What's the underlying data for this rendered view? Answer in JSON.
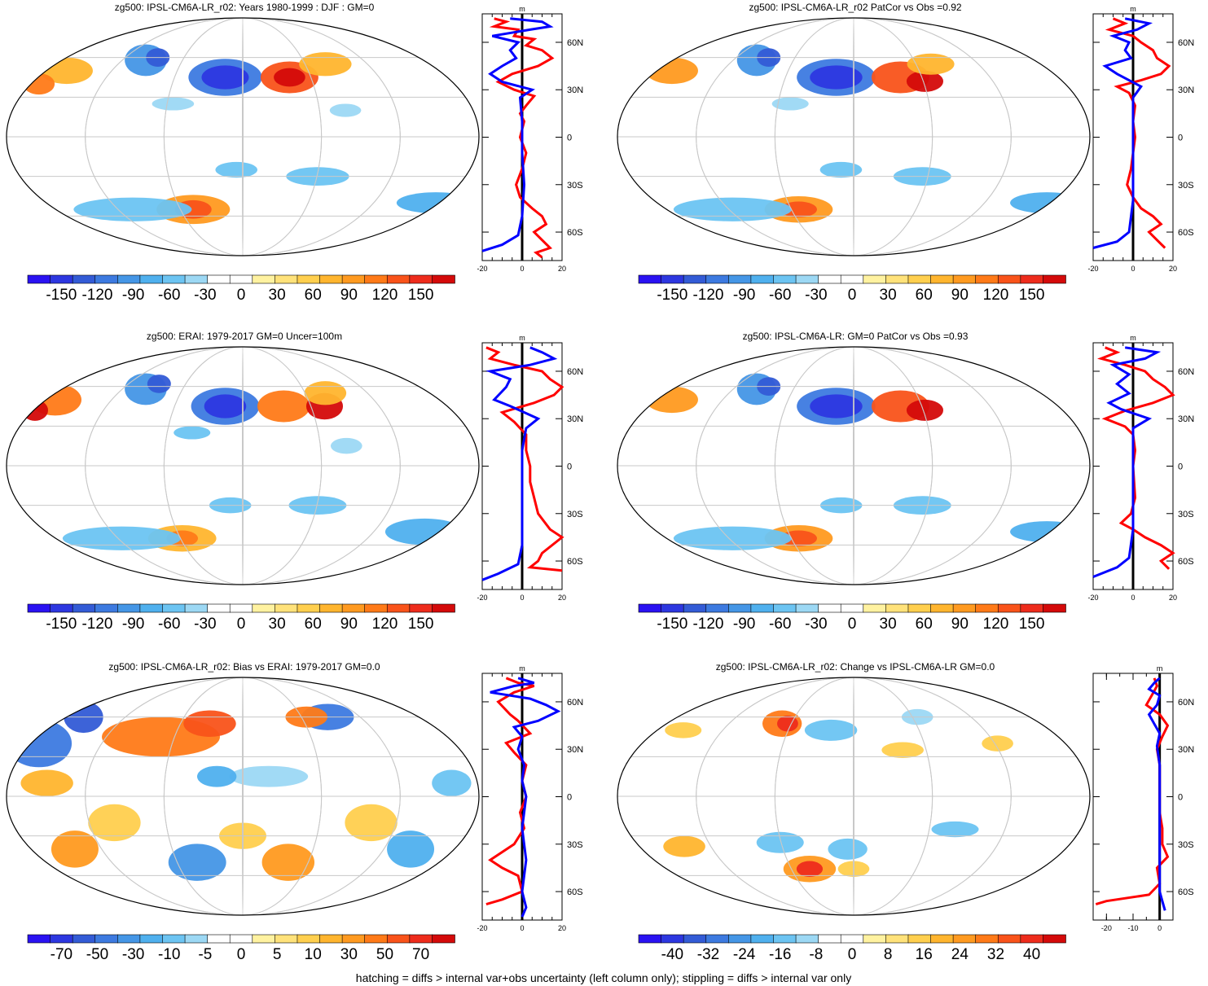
{
  "colors": {
    "scale": [
      "#2a12f2",
      "#2d37e0",
      "#335bd6",
      "#3d7ae0",
      "#4596e6",
      "#4fb0ee",
      "#6cc4f2",
      "#9cd8f4",
      "#ffffff",
      "#ffffff",
      "#fff2a0",
      "#ffe27a",
      "#ffcf4e",
      "#ffb52e",
      "#ff9a20",
      "#ff7a18",
      "#f9531a",
      "#ee2c1c",
      "#d40a0a"
    ],
    "red_line": "#ff0000",
    "blue_line": "#0000ff",
    "grid": "#c8c8c8"
  },
  "footer": "hatching = diffs > internal var+obs uncertainty (left column only); stippling = diffs > internal var only",
  "chart_data": [
    {
      "type": "heatmap",
      "title": "zg500: IPSL-CM6A-LR_r02: Years 1980-1999 : DJF : GM=0",
      "colorbar": {
        "labels": [
          "-150",
          "-120",
          "-90",
          "-60",
          "-30",
          "0",
          "30",
          "60",
          "90",
          "120",
          "150"
        ]
      },
      "lat_labels": [
        "60N",
        "30N",
        "0",
        "30S",
        "60S"
      ],
      "profile": {
        "xlabel": "m",
        "xlim": [
          -20,
          20
        ],
        "x_ticks": [
          "-20",
          "0",
          "20"
        ],
        "red": [
          [
            -14,
            75
          ],
          [
            -8,
            73
          ],
          [
            -14,
            70
          ],
          [
            -2,
            68
          ],
          [
            -4,
            64
          ],
          [
            6,
            62
          ],
          [
            2,
            58
          ],
          [
            10,
            55
          ],
          [
            15,
            50
          ],
          [
            8,
            45
          ],
          [
            -5,
            40
          ],
          [
            -12,
            35
          ],
          [
            -4,
            30
          ],
          [
            6,
            26
          ],
          [
            2,
            20
          ],
          [
            -1,
            15
          ],
          [
            1,
            10
          ],
          [
            -1,
            0
          ],
          [
            2,
            -10
          ],
          [
            0,
            -20
          ],
          [
            -3,
            -30
          ],
          [
            -1,
            -38
          ],
          [
            5,
            -45
          ],
          [
            10,
            -50
          ],
          [
            12,
            -55
          ],
          [
            6,
            -60
          ],
          [
            10,
            -65
          ],
          [
            14,
            -70
          ],
          [
            7,
            -73
          ],
          [
            10,
            -76
          ]
        ],
        "blue": [
          [
            -6,
            75
          ],
          [
            10,
            73
          ],
          [
            14,
            70
          ],
          [
            4,
            68
          ],
          [
            -15,
            64
          ],
          [
            -2,
            60
          ],
          [
            -6,
            55
          ],
          [
            -3,
            50
          ],
          [
            -10,
            45
          ],
          [
            -16,
            40
          ],
          [
            -10,
            35
          ],
          [
            5,
            30
          ],
          [
            -1,
            25
          ],
          [
            0,
            10
          ],
          [
            0,
            -10
          ],
          [
            1,
            -30
          ],
          [
            0,
            -50
          ],
          [
            -2,
            -62
          ],
          [
            -10,
            -68
          ],
          [
            -20,
            -72
          ]
        ]
      }
    },
    {
      "type": "heatmap",
      "title": "zg500: IPSL-CM6A-LR_r02 PatCor vs Obs =0.92",
      "colorbar": {
        "labels": [
          "-150",
          "-120",
          "-90",
          "-60",
          "-30",
          "0",
          "30",
          "60",
          "90",
          "120",
          "150"
        ]
      },
      "lat_labels": [
        "60N",
        "30N",
        "0",
        "30S",
        "60S"
      ],
      "profile": {
        "xlabel": "m",
        "xlim": [
          -20,
          20
        ],
        "x_ticks": [
          "-20",
          "0",
          "20"
        ],
        "red": [
          [
            -10,
            75
          ],
          [
            -4,
            72
          ],
          [
            -12,
            68
          ],
          [
            0,
            64
          ],
          [
            4,
            60
          ],
          [
            10,
            55
          ],
          [
            12,
            50
          ],
          [
            18,
            45
          ],
          [
            14,
            40
          ],
          [
            4,
            36
          ],
          [
            -8,
            32
          ],
          [
            -2,
            28
          ],
          [
            1,
            20
          ],
          [
            0,
            10
          ],
          [
            1,
            0
          ],
          [
            -1,
            -20
          ],
          [
            -3,
            -30
          ],
          [
            0,
            -38
          ],
          [
            4,
            -45
          ],
          [
            10,
            -50
          ],
          [
            14,
            -55
          ],
          [
            8,
            -60
          ],
          [
            12,
            -65
          ],
          [
            16,
            -70
          ]
        ],
        "blue": [
          [
            -4,
            75
          ],
          [
            8,
            72
          ],
          [
            2,
            68
          ],
          [
            -10,
            64
          ],
          [
            -2,
            60
          ],
          [
            -4,
            55
          ],
          [
            -1,
            50
          ],
          [
            -14,
            45
          ],
          [
            -8,
            40
          ],
          [
            4,
            32
          ],
          [
            0,
            25
          ],
          [
            0,
            0
          ],
          [
            0,
            -40
          ],
          [
            -2,
            -60
          ],
          [
            -8,
            -66
          ],
          [
            -20,
            -70
          ]
        ]
      }
    },
    {
      "type": "heatmap",
      "title": "zg500: ERAI: 1979-2017 GM=0 Uncer=100m",
      "colorbar": {
        "labels": [
          "-150",
          "-120",
          "-90",
          "-60",
          "-30",
          "0",
          "30",
          "60",
          "90",
          "120",
          "150"
        ]
      },
      "lat_labels": [
        "60N",
        "30N",
        "0",
        "30S",
        "60S"
      ],
      "profile": {
        "xlabel": "m",
        "xlim": [
          -20,
          20
        ],
        "x_ticks": [
          "-20",
          "0",
          "20"
        ],
        "red": [
          [
            -18,
            75
          ],
          [
            -12,
            72
          ],
          [
            -16,
            68
          ],
          [
            -4,
            64
          ],
          [
            10,
            60
          ],
          [
            14,
            55
          ],
          [
            20,
            50
          ],
          [
            16,
            45
          ],
          [
            6,
            40
          ],
          [
            -10,
            34
          ],
          [
            -4,
            28
          ],
          [
            2,
            20
          ],
          [
            2,
            10
          ],
          [
            4,
            0
          ],
          [
            4,
            -10
          ],
          [
            6,
            -20
          ],
          [
            8,
            -30
          ],
          [
            14,
            -40
          ],
          [
            20,
            -45
          ],
          [
            10,
            -55
          ],
          [
            8,
            -60
          ],
          [
            4,
            -64
          ],
          [
            20,
            -66
          ]
        ],
        "blue": [
          [
            4,
            75
          ],
          [
            10,
            72
          ],
          [
            16,
            68
          ],
          [
            4,
            64
          ],
          [
            -16,
            60
          ],
          [
            -6,
            55
          ],
          [
            -8,
            50
          ],
          [
            -14,
            42
          ],
          [
            -6,
            38
          ],
          [
            8,
            30
          ],
          [
            2,
            24
          ],
          [
            0,
            10
          ],
          [
            0,
            -20
          ],
          [
            0,
            -50
          ],
          [
            -2,
            -62
          ],
          [
            -12,
            -68
          ],
          [
            -20,
            -72
          ]
        ]
      }
    },
    {
      "type": "heatmap",
      "title": "zg500: IPSL-CM6A-LR: GM=0 PatCor vs Obs =0.93",
      "colorbar": {
        "labels": [
          "-150",
          "-120",
          "-90",
          "-60",
          "-30",
          "0",
          "30",
          "60",
          "90",
          "120",
          "150"
        ]
      },
      "lat_labels": [
        "60N",
        "30N",
        "0",
        "30S",
        "60S"
      ],
      "profile": {
        "xlabel": "m",
        "xlim": [
          -20,
          20
        ],
        "x_ticks": [
          "-20",
          "0",
          "20"
        ],
        "red": [
          [
            -14,
            75
          ],
          [
            -8,
            72
          ],
          [
            -16,
            68
          ],
          [
            -4,
            64
          ],
          [
            6,
            60
          ],
          [
            10,
            55
          ],
          [
            16,
            50
          ],
          [
            20,
            45
          ],
          [
            10,
            40
          ],
          [
            -4,
            35
          ],
          [
            -14,
            30
          ],
          [
            -4,
            25
          ],
          [
            0,
            20
          ],
          [
            1,
            10
          ],
          [
            0,
            0
          ],
          [
            1,
            -20
          ],
          [
            -1,
            -30
          ],
          [
            -6,
            -36
          ],
          [
            0,
            -40
          ],
          [
            6,
            -45
          ],
          [
            14,
            -50
          ],
          [
            20,
            -55
          ],
          [
            14,
            -60
          ],
          [
            18,
            -65
          ]
        ],
        "blue": [
          [
            -4,
            75
          ],
          [
            12,
            72
          ],
          [
            6,
            68
          ],
          [
            -10,
            64
          ],
          [
            -2,
            58
          ],
          [
            -8,
            52
          ],
          [
            -2,
            46
          ],
          [
            -12,
            40
          ],
          [
            -6,
            36
          ],
          [
            8,
            30
          ],
          [
            0,
            24
          ],
          [
            0,
            0
          ],
          [
            0,
            -40
          ],
          [
            -2,
            -58
          ],
          [
            -8,
            -64
          ],
          [
            -20,
            -70
          ]
        ]
      }
    },
    {
      "type": "heatmap",
      "title": "zg500: IPSL-CM6A-LR_r02: Bias vs ERAI: 1979-2017 GM=0.0",
      "colorbar": {
        "labels": [
          "-70",
          "-50",
          "-30",
          "-10",
          "-5",
          "0",
          "5",
          "10",
          "30",
          "50",
          "70"
        ]
      },
      "lat_labels": [
        "60N",
        "30N",
        "0",
        "30S",
        "60S"
      ],
      "profile": {
        "xlabel": "m",
        "xlim": [
          -20,
          20
        ],
        "x_ticks": [
          "-20",
          "0",
          "20"
        ],
        "red": [
          [
            -8,
            75
          ],
          [
            -2,
            72
          ],
          [
            6,
            70
          ],
          [
            -4,
            66
          ],
          [
            -12,
            60
          ],
          [
            -6,
            52
          ],
          [
            -2,
            48
          ],
          [
            4,
            40
          ],
          [
            -8,
            34
          ],
          [
            -4,
            28
          ],
          [
            2,
            20
          ],
          [
            0,
            10
          ],
          [
            2,
            0
          ],
          [
            -1,
            -10
          ],
          [
            1,
            -20
          ],
          [
            -4,
            -30
          ],
          [
            -16,
            -40
          ],
          [
            -10,
            -45
          ],
          [
            -2,
            -50
          ],
          [
            0,
            -60
          ],
          [
            -10,
            -65
          ],
          [
            -18,
            -68
          ]
        ],
        "blue": [
          [
            -2,
            75
          ],
          [
            6,
            72
          ],
          [
            -4,
            70
          ],
          [
            -16,
            66
          ],
          [
            4,
            62
          ],
          [
            12,
            58
          ],
          [
            18,
            54
          ],
          [
            8,
            48
          ],
          [
            -4,
            44
          ],
          [
            0,
            38
          ],
          [
            -2,
            30
          ],
          [
            1,
            20
          ],
          [
            0,
            10
          ],
          [
            2,
            0
          ],
          [
            0,
            -20
          ],
          [
            2,
            -40
          ],
          [
            0,
            -60
          ],
          [
            2,
            -70
          ],
          [
            0,
            -76
          ]
        ]
      }
    },
    {
      "type": "heatmap",
      "title": "zg500: IPSL-CM6A-LR_r02: Change vs IPSL-CM6A-LR GM=0.0",
      "colorbar": {
        "labels": [
          "-40",
          "-32",
          "-24",
          "-16",
          "-8",
          "0",
          "8",
          "16",
          "24",
          "32",
          "40"
        ]
      },
      "lat_labels": [
        "60N",
        "30N",
        "0",
        "30S",
        "60S"
      ],
      "profile": {
        "xlabel": "m",
        "xlim": [
          -25,
          5
        ],
        "x_ticks": [
          "-20",
          "-10",
          "0"
        ],
        "red": [
          [
            -2,
            75
          ],
          [
            -1,
            70
          ],
          [
            -3,
            64
          ],
          [
            -5,
            58
          ],
          [
            0,
            52
          ],
          [
            3,
            45
          ],
          [
            1,
            38
          ],
          [
            -1,
            30
          ],
          [
            0,
            20
          ],
          [
            0,
            10
          ],
          [
            0,
            0
          ],
          [
            0,
            -10
          ],
          [
            1,
            -20
          ],
          [
            1,
            -30
          ],
          [
            3,
            -38
          ],
          [
            -1,
            -45
          ],
          [
            0,
            -55
          ],
          [
            -4,
            -62
          ],
          [
            -20,
            -66
          ],
          [
            -24,
            -68
          ]
        ],
        "blue": [
          [
            0,
            75
          ],
          [
            -2,
            72
          ],
          [
            -4,
            68
          ],
          [
            0,
            64
          ],
          [
            -1,
            58
          ],
          [
            -4,
            52
          ],
          [
            -2,
            46
          ],
          [
            0,
            40
          ],
          [
            -1,
            32
          ],
          [
            0,
            20
          ],
          [
            0,
            0
          ],
          [
            0,
            -40
          ],
          [
            0,
            -60
          ],
          [
            1,
            -66
          ],
          [
            2,
            -72
          ]
        ]
      }
    }
  ]
}
